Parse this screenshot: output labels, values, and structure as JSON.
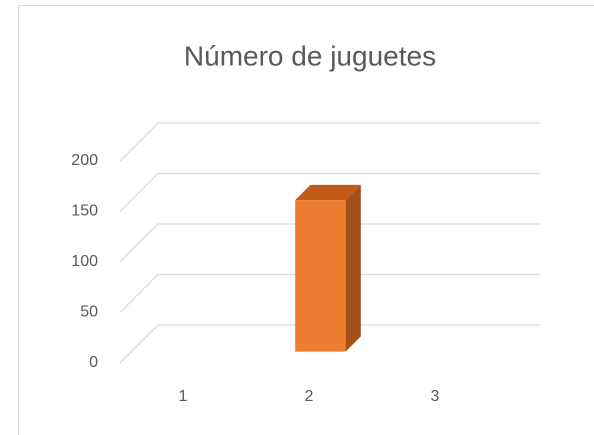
{
  "chart_data": {
    "type": "bar3d",
    "title": "Número de juguetes",
    "categories": [
      "1",
      "2",
      "3"
    ],
    "values": [
      0,
      150,
      0
    ],
    "color": "#ed7d31",
    "ylim": [
      0,
      200
    ],
    "yticks": [
      0,
      50,
      100,
      150,
      200
    ],
    "grid": true
  }
}
